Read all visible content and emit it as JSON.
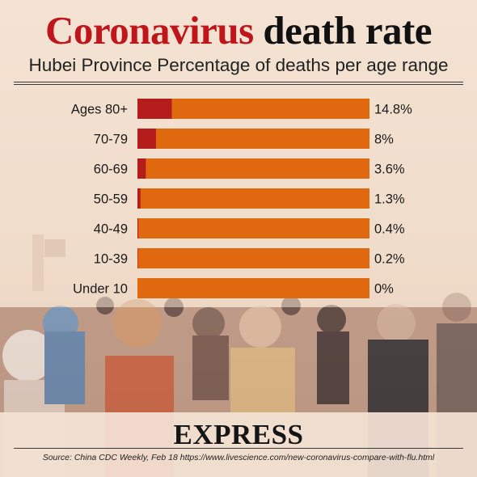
{
  "header": {
    "title_part1": "Coronavirus",
    "title_part2": "death rate",
    "subtitle": "Hubei Province Percentage of deaths per age range"
  },
  "colors": {
    "title_red": "#c0161b",
    "bar_orange": "#e0690f",
    "bar_fill_red": "#b51c1c",
    "background": "#efd8c6"
  },
  "chart_data": {
    "type": "bar",
    "orientation": "horizontal",
    "title": "Coronavirus death rate",
    "subtitle": "Hubei Province Percentage of deaths per age range",
    "categories": [
      "Ages 80+",
      "70-79",
      "60-69",
      "50-59",
      "40-49",
      "10-39",
      "Under 10"
    ],
    "values": [
      14.8,
      8,
      3.6,
      1.3,
      0.4,
      0.2,
      0
    ],
    "value_labels": [
      "14.8%",
      "8%",
      "3.6%",
      "1.3%",
      "0.4%",
      "0.2%",
      "0%"
    ],
    "xlim": [
      0,
      100
    ],
    "unit": "%",
    "grid": false
  },
  "footer": {
    "brand": "EXPRESS",
    "source": "Source: China CDC Weekly, Feb 18 https://www.livescience.com/new-coronavirus-compare-with-flu.html"
  }
}
